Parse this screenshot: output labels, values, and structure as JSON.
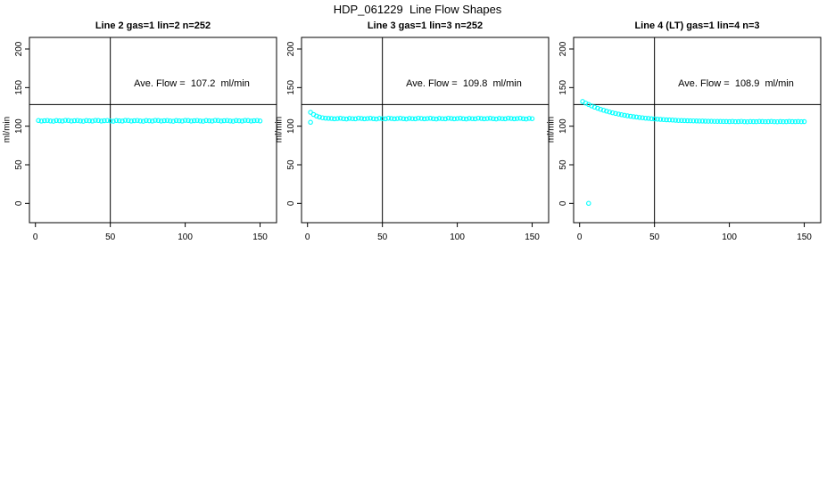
{
  "chart_data": {
    "type": "scatter",
    "suptitle": "HDP_061229  Line Flow Shapes",
    "ylabel": "ml/min",
    "xlabel": "",
    "x_ticks": [
      0,
      50,
      100,
      150
    ],
    "y_ticks": [
      0,
      50,
      100,
      150,
      200
    ],
    "x_range": [
      -4,
      161
    ],
    "y_range": [
      -25,
      215
    ],
    "grid": false,
    "legend": "none",
    "point_color": "#00FFFF",
    "line_color": "#000000",
    "panels": [
      {
        "title": "Line 2 gas=1 lin=2 n=252",
        "annotation": "Ave. Flow =  107.2  ml/min",
        "ave_flow_ml_min": 107.2,
        "n": 252,
        "vline_x": 50,
        "hline_y": 128,
        "points": [
          [
            2,
            107.3
          ],
          [
            4,
            106.6
          ],
          [
            6,
            107.1
          ],
          [
            8,
            107.5
          ],
          [
            10,
            106.8
          ],
          [
            12,
            106.4
          ],
          [
            14,
            107.4
          ],
          [
            16,
            107.0
          ],
          [
            18,
            106.7
          ],
          [
            20,
            107.6
          ],
          [
            22,
            107.3
          ],
          [
            24,
            106.6
          ],
          [
            26,
            107.1
          ],
          [
            28,
            107.5
          ],
          [
            30,
            106.8
          ],
          [
            32,
            106.4
          ],
          [
            34,
            107.4
          ],
          [
            36,
            107.0
          ],
          [
            38,
            106.7
          ],
          [
            40,
            107.6
          ],
          [
            42,
            107.3
          ],
          [
            44,
            106.6
          ],
          [
            46,
            107.1
          ],
          [
            48,
            107.5
          ],
          [
            50,
            106.8
          ],
          [
            52,
            106.4
          ],
          [
            54,
            107.4
          ],
          [
            56,
            107.0
          ],
          [
            58,
            106.7
          ],
          [
            60,
            107.6
          ],
          [
            62,
            107.3
          ],
          [
            64,
            106.6
          ],
          [
            66,
            107.1
          ],
          [
            68,
            107.5
          ],
          [
            70,
            106.8
          ],
          [
            72,
            106.4
          ],
          [
            74,
            107.4
          ],
          [
            76,
            107.0
          ],
          [
            78,
            106.7
          ],
          [
            80,
            107.6
          ],
          [
            82,
            107.3
          ],
          [
            84,
            106.6
          ],
          [
            86,
            107.1
          ],
          [
            88,
            107.5
          ],
          [
            90,
            106.8
          ],
          [
            92,
            106.4
          ],
          [
            94,
            107.4
          ],
          [
            96,
            107.0
          ],
          [
            98,
            106.7
          ],
          [
            100,
            107.6
          ],
          [
            102,
            107.3
          ],
          [
            104,
            106.6
          ],
          [
            106,
            107.1
          ],
          [
            108,
            107.5
          ],
          [
            110,
            106.8
          ],
          [
            112,
            106.4
          ],
          [
            114,
            107.4
          ],
          [
            116,
            107.0
          ],
          [
            118,
            106.7
          ],
          [
            120,
            107.6
          ],
          [
            122,
            107.3
          ],
          [
            124,
            106.6
          ],
          [
            126,
            107.1
          ],
          [
            128,
            107.5
          ],
          [
            130,
            106.8
          ],
          [
            132,
            106.4
          ],
          [
            134,
            107.4
          ],
          [
            136,
            107.0
          ],
          [
            138,
            106.7
          ],
          [
            140,
            107.6
          ],
          [
            142,
            107.3
          ],
          [
            144,
            106.6
          ],
          [
            146,
            107.1
          ],
          [
            148,
            107.5
          ],
          [
            150,
            106.8
          ]
        ]
      },
      {
        "title": "Line 3 gas=1 lin=3 n=252",
        "annotation": "Ave. Flow =  109.8  ml/min",
        "ave_flow_ml_min": 109.8,
        "n": 252,
        "vline_x": 50,
        "hline_y": 128,
        "points": [
          [
            2,
            118.0
          ],
          [
            2,
            105.0
          ],
          [
            4,
            115.2
          ],
          [
            6,
            113.1
          ],
          [
            8,
            111.8
          ],
          [
            10,
            110.9
          ],
          [
            12,
            110.4
          ],
          [
            14,
            110.1
          ],
          [
            16,
            110.0
          ],
          [
            18,
            109.5
          ],
          [
            20,
            109.9
          ],
          [
            22,
            110.2
          ],
          [
            24,
            109.6
          ],
          [
            26,
            109.3
          ],
          [
            28,
            110.1
          ],
          [
            30,
            109.8
          ],
          [
            32,
            109.5
          ],
          [
            34,
            110.3
          ],
          [
            36,
            110.0
          ],
          [
            38,
            109.5
          ],
          [
            40,
            109.9
          ],
          [
            42,
            110.2
          ],
          [
            44,
            109.6
          ],
          [
            46,
            109.3
          ],
          [
            48,
            110.1
          ],
          [
            50,
            109.8
          ],
          [
            52,
            109.5
          ],
          [
            54,
            110.3
          ],
          [
            56,
            110.0
          ],
          [
            58,
            109.5
          ],
          [
            60,
            109.9
          ],
          [
            62,
            110.2
          ],
          [
            64,
            109.6
          ],
          [
            66,
            109.3
          ],
          [
            68,
            110.1
          ],
          [
            70,
            109.8
          ],
          [
            72,
            109.5
          ],
          [
            74,
            110.3
          ],
          [
            76,
            110.0
          ],
          [
            78,
            109.5
          ],
          [
            80,
            109.9
          ],
          [
            82,
            110.2
          ],
          [
            84,
            109.6
          ],
          [
            86,
            109.3
          ],
          [
            88,
            110.1
          ],
          [
            90,
            109.8
          ],
          [
            92,
            109.5
          ],
          [
            94,
            110.3
          ],
          [
            96,
            110.0
          ],
          [
            98,
            109.5
          ],
          [
            100,
            109.9
          ],
          [
            102,
            110.2
          ],
          [
            104,
            109.6
          ],
          [
            106,
            109.3
          ],
          [
            108,
            110.1
          ],
          [
            110,
            109.8
          ],
          [
            112,
            109.5
          ],
          [
            114,
            110.3
          ],
          [
            116,
            110.0
          ],
          [
            118,
            109.5
          ],
          [
            120,
            109.9
          ],
          [
            122,
            110.2
          ],
          [
            124,
            109.6
          ],
          [
            126,
            109.3
          ],
          [
            128,
            110.1
          ],
          [
            130,
            109.8
          ],
          [
            132,
            109.5
          ],
          [
            134,
            110.3
          ],
          [
            136,
            110.0
          ],
          [
            138,
            109.5
          ],
          [
            140,
            109.9
          ],
          [
            142,
            110.2
          ],
          [
            144,
            109.6
          ],
          [
            146,
            109.3
          ],
          [
            148,
            110.1
          ],
          [
            150,
            109.8
          ]
        ]
      },
      {
        "title": "Line 4 (LT) gas=1 lin=4 n=3",
        "annotation": "Ave. Flow =  108.9  ml/min",
        "ave_flow_ml_min": 108.9,
        "n": 3,
        "vline_x": 50,
        "hline_y": 128,
        "points": [
          [
            6,
            0.0
          ],
          [
            2,
            132.0
          ],
          [
            4,
            130.0
          ],
          [
            6,
            128.1
          ],
          [
            8,
            126.3
          ],
          [
            10,
            124.7
          ],
          [
            12,
            123.3
          ],
          [
            14,
            121.9
          ],
          [
            16,
            120.6
          ],
          [
            18,
            119.5
          ],
          [
            20,
            118.4
          ],
          [
            22,
            117.4
          ],
          [
            24,
            116.5
          ],
          [
            26,
            115.6
          ],
          [
            28,
            114.9
          ],
          [
            30,
            114.1
          ],
          [
            32,
            113.5
          ],
          [
            34,
            112.9
          ],
          [
            36,
            112.3
          ],
          [
            38,
            111.8
          ],
          [
            40,
            111.3
          ],
          [
            42,
            110.9
          ],
          [
            44,
            110.4
          ],
          [
            46,
            110.1
          ],
          [
            48,
            109.7
          ],
          [
            50,
            109.4
          ],
          [
            52,
            109.1
          ],
          [
            54,
            108.8
          ],
          [
            56,
            108.6
          ],
          [
            58,
            108.3
          ],
          [
            60,
            108.1
          ],
          [
            62,
            107.9
          ],
          [
            64,
            107.7
          ],
          [
            66,
            107.5
          ],
          [
            68,
            107.4
          ],
          [
            70,
            107.2
          ],
          [
            72,
            107.1
          ],
          [
            74,
            107.0
          ],
          [
            76,
            106.9
          ],
          [
            78,
            106.8
          ],
          [
            80,
            106.7
          ],
          [
            82,
            106.6
          ],
          [
            84,
            106.5
          ],
          [
            86,
            106.4
          ],
          [
            88,
            106.4
          ],
          [
            90,
            106.3
          ],
          [
            92,
            106.2
          ],
          [
            94,
            106.2
          ],
          [
            96,
            106.1
          ],
          [
            98,
            106.1
          ],
          [
            100,
            106.0
          ],
          [
            102,
            106.2
          ],
          [
            104,
            105.8
          ],
          [
            106,
            106.0
          ],
          [
            108,
            106.3
          ],
          [
            110,
            105.9
          ],
          [
            112,
            105.7
          ],
          [
            114,
            106.1
          ],
          [
            116,
            106.0
          ],
          [
            118,
            105.8
          ],
          [
            120,
            106.2
          ],
          [
            122,
            106.1
          ],
          [
            124,
            105.8
          ],
          [
            126,
            106.0
          ],
          [
            128,
            106.2
          ],
          [
            130,
            105.9
          ],
          [
            132,
            105.7
          ],
          [
            134,
            106.1
          ],
          [
            136,
            105.9
          ],
          [
            138,
            105.8
          ],
          [
            140,
            106.2
          ],
          [
            142,
            106.0
          ],
          [
            144,
            105.8
          ],
          [
            146,
            106.1
          ],
          [
            148,
            105.9
          ],
          [
            150,
            106.0
          ]
        ]
      }
    ]
  }
}
